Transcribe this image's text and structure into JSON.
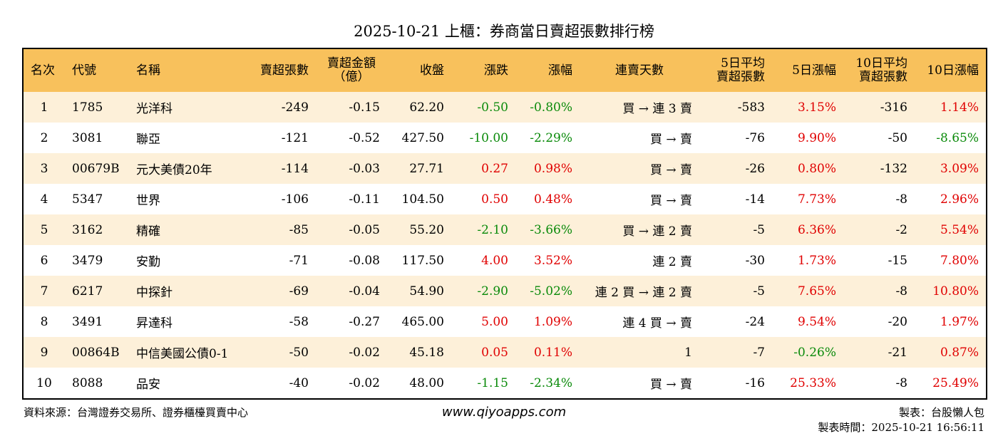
{
  "header": {
    "title": "2025-10-21 上櫃：券商當日賣超張數排行榜"
  },
  "table": {
    "columns": [
      [
        "名次"
      ],
      [
        "代號"
      ],
      [
        "名稱"
      ],
      [
        "賣超張數"
      ],
      [
        "賣超金額",
        "（億）"
      ],
      [
        "收盤"
      ],
      [
        "漲跌"
      ],
      [
        "漲幅"
      ],
      [
        "連賣天數"
      ],
      [
        "5日平均",
        "賣超張數"
      ],
      [
        "5日漲幅"
      ],
      [
        "10日平均",
        "賣超張數"
      ],
      [
        "10日漲幅"
      ]
    ],
    "rows": [
      [
        "1",
        "1785",
        "光洋科",
        "-249",
        "-0.15",
        "62.20",
        "-0.50",
        "-0.80%",
        "買 → 連 3 賣",
        "-583",
        "3.15%",
        "-316",
        "1.14%"
      ],
      [
        "2",
        "3081",
        "聯亞",
        "-121",
        "-0.52",
        "427.50",
        "-10.00",
        "-2.29%",
        "買 → 賣",
        "-76",
        "9.90%",
        "-50",
        "-8.65%"
      ],
      [
        "3",
        "00679B",
        "元大美債20年",
        "-114",
        "-0.03",
        "27.71",
        "0.27",
        "0.98%",
        "買 → 賣",
        "-26",
        "0.80%",
        "-132",
        "3.09%"
      ],
      [
        "4",
        "5347",
        "世界",
        "-106",
        "-0.11",
        "104.50",
        "0.50",
        "0.48%",
        "買 → 賣",
        "-14",
        "7.73%",
        "-8",
        "2.96%"
      ],
      [
        "5",
        "3162",
        "精確",
        "-85",
        "-0.05",
        "55.20",
        "-2.10",
        "-3.66%",
        "買 → 連 2 賣",
        "-5",
        "6.36%",
        "-2",
        "5.54%"
      ],
      [
        "6",
        "3479",
        "安勤",
        "-71",
        "-0.08",
        "117.50",
        "4.00",
        "3.52%",
        "連 2 賣",
        "-30",
        "1.73%",
        "-15",
        "7.80%"
      ],
      [
        "7",
        "6217",
        "中探針",
        "-69",
        "-0.04",
        "54.90",
        "-2.90",
        "-5.02%",
        "連 2 買 → 連 2 賣",
        "-5",
        "7.65%",
        "-8",
        "10.80%"
      ],
      [
        "8",
        "3491",
        "昇達科",
        "-58",
        "-0.27",
        "465.00",
        "5.00",
        "1.09%",
        "連 4 買 → 賣",
        "-24",
        "9.54%",
        "-20",
        "1.97%"
      ],
      [
        "9",
        "00864B",
        "中信美國公債0-1",
        "-50",
        "-0.02",
        "45.18",
        "0.05",
        "0.11%",
        "1",
        "-7",
        "-0.26%",
        "-21",
        "0.87%"
      ],
      [
        "10",
        "8088",
        "品安",
        "-40",
        "-0.02",
        "48.00",
        "-1.15",
        "-2.34%",
        "買 → 賣",
        "-16",
        "25.33%",
        "-8",
        "25.49%"
      ]
    ]
  },
  "footer": {
    "source": "資料來源：台灣證券交易所、證券櫃檯買賣中心",
    "site": "www.qiyoapps.com",
    "maker": "製表：台股懶人包",
    "time": "製表時間：2025-10-21 16:56:11"
  }
}
